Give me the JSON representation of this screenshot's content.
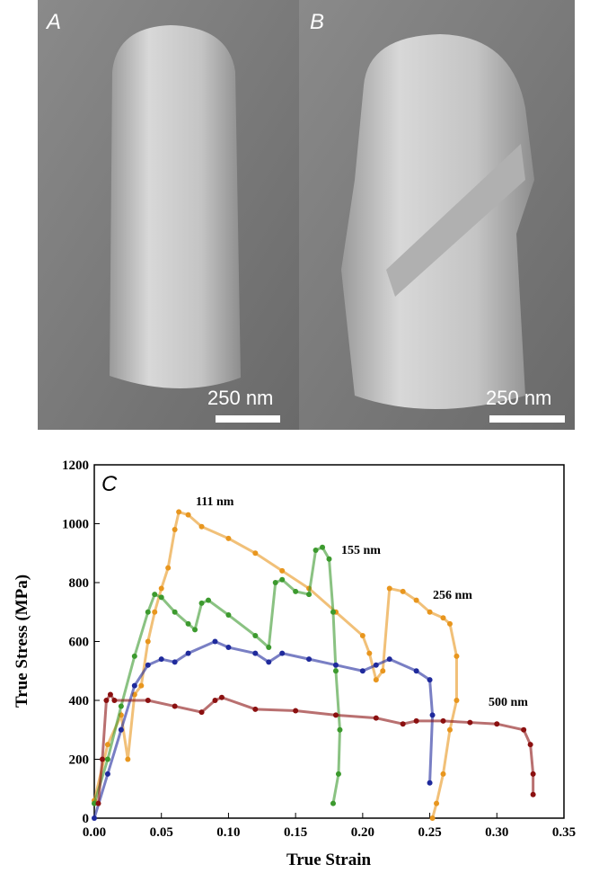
{
  "images": [
    {
      "label": "A",
      "scale_bar": "250 nm"
    },
    {
      "label": "B",
      "scale_bar": "250 nm"
    }
  ],
  "chart_data": {
    "type": "scatter",
    "panel_label": "C",
    "x_label": "True Strain",
    "y_label": "True Stress (MPa)",
    "xlim": [
      0,
      0.35
    ],
    "xticks": [
      {
        "value": 0,
        "label": "0.00"
      },
      {
        "value": 0.05,
        "label": "0.05"
      },
      {
        "value": 0.1,
        "label": "0.10"
      },
      {
        "value": 0.15,
        "label": "0.15"
      },
      {
        "value": 0.2,
        "label": "0.20"
      },
      {
        "value": 0.25,
        "label": "0.25"
      },
      {
        "value": 0.3,
        "label": "0.30"
      },
      {
        "value": 0.35,
        "label": "0.35"
      }
    ],
    "ylim": [
      0,
      1200
    ],
    "yticks": [
      0,
      200,
      400,
      600,
      800,
      1000,
      1200
    ],
    "annotations": [
      "111 nm",
      "155 nm",
      "256 nm",
      "500 nm"
    ],
    "series": [
      {
        "color": "#e8961e",
        "x": [
          0,
          0.01,
          0.02,
          0.025,
          0.03,
          0.035,
          0.04,
          0.045,
          0.05,
          0.055,
          0.06,
          0.063,
          0.07,
          0.08,
          0.1,
          0.12,
          0.14,
          0.16,
          0.18,
          0.2,
          0.205,
          0.21,
          0.215,
          0.22,
          0.23,
          0.24,
          0.25,
          0.26,
          0.265,
          0.27,
          0.27,
          0.265,
          0.26,
          0.255,
          0.252
        ],
        "values": [
          60,
          250,
          350,
          200,
          420,
          450,
          600,
          700,
          780,
          850,
          980,
          1040,
          1030,
          990,
          950,
          900,
          840,
          780,
          700,
          620,
          560,
          470,
          500,
          780,
          770,
          740,
          700,
          680,
          660,
          550,
          400,
          300,
          150,
          50,
          0
        ]
      },
      {
        "color": "#3c9a2e",
        "x": [
          0,
          0.01,
          0.02,
          0.03,
          0.04,
          0.045,
          0.05,
          0.06,
          0.07,
          0.075,
          0.08,
          0.085,
          0.1,
          0.12,
          0.13,
          0.135,
          0.14,
          0.15,
          0.16,
          0.165,
          0.17,
          0.175,
          0.178,
          0.18,
          0.183,
          0.182,
          0.178
        ],
        "values": [
          50,
          200,
          380,
          550,
          700,
          760,
          750,
          700,
          660,
          640,
          730,
          740,
          690,
          620,
          580,
          800,
          810,
          770,
          760,
          910,
          920,
          880,
          700,
          500,
          300,
          150,
          50
        ]
      },
      {
        "color": "#1f2a9c",
        "x": [
          0,
          0.01,
          0.02,
          0.03,
          0.04,
          0.05,
          0.06,
          0.07,
          0.09,
          0.1,
          0.12,
          0.13,
          0.14,
          0.16,
          0.18,
          0.2,
          0.21,
          0.22,
          0.24,
          0.25,
          0.252,
          0.25
        ],
        "values": [
          0,
          150,
          300,
          450,
          520,
          540,
          530,
          560,
          600,
          580,
          560,
          530,
          560,
          540,
          520,
          500,
          520,
          540,
          500,
          470,
          350,
          120
        ]
      },
      {
        "color": "#8b1010",
        "x": [
          0.003,
          0.006,
          0.009,
          0.012,
          0.015,
          0.04,
          0.06,
          0.08,
          0.09,
          0.095,
          0.12,
          0.15,
          0.18,
          0.21,
          0.23,
          0.24,
          0.26,
          0.28,
          0.3,
          0.32,
          0.325,
          0.327,
          0.327
        ],
        "values": [
          50,
          200,
          400,
          420,
          400,
          400,
          380,
          360,
          400,
          410,
          370,
          365,
          350,
          340,
          320,
          330,
          330,
          325,
          320,
          300,
          250,
          150,
          80
        ]
      }
    ]
  }
}
